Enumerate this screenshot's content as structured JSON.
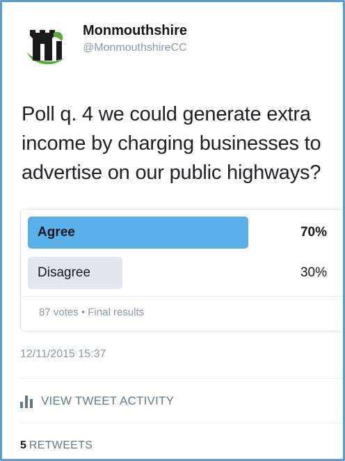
{
  "account": {
    "display_name": "Monmouthshire",
    "handle": "@MonmouthshireCC",
    "avatar_icon": "monmouthshire-logo"
  },
  "tweet": {
    "text": "Poll q. 4 we could generate extra\nincome by charging businesses to\nadvertise on our public highways?"
  },
  "poll": {
    "choices": [
      {
        "label": "Agree",
        "percent_text": "70%",
        "fraction": 0.7,
        "color": "#5ab0e8",
        "winner": true
      },
      {
        "label": "Disagree",
        "percent_text": "30%",
        "fraction": 0.3,
        "color": "#e1e8ed",
        "winner": false
      }
    ],
    "meta": "87 votes • Final results"
  },
  "timestamp": "12/11/2015 15:37",
  "activity": {
    "label": "VIEW TWEET ACTIVITY",
    "icon": "bar-chart-icon"
  },
  "retweets": {
    "count": "5",
    "label": "RETWEETS"
  }
}
